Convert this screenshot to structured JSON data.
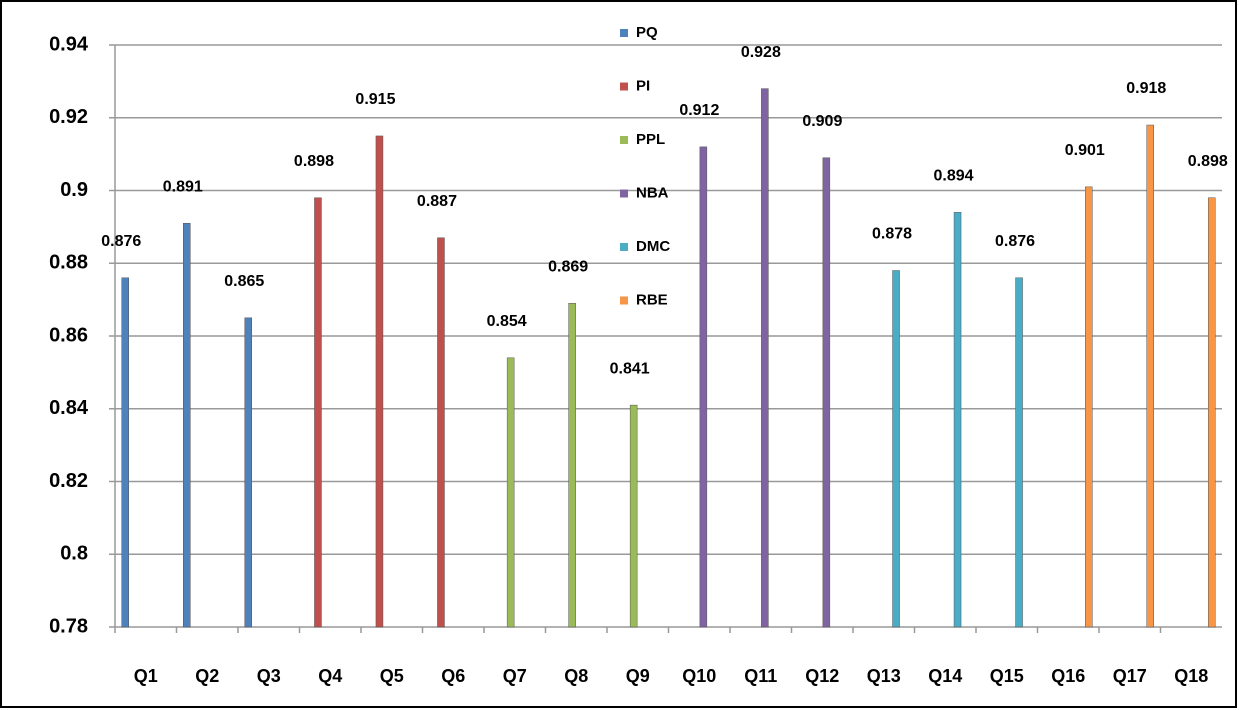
{
  "chart_data": {
    "type": "bar",
    "categories": [
      "Q1",
      "Q2",
      "Q3",
      "Q4",
      "Q5",
      "Q6",
      "Q7",
      "Q8",
      "Q9",
      "Q10",
      "Q11",
      "Q12",
      "Q13",
      "Q14",
      "Q15",
      "Q16",
      "Q17",
      "Q18"
    ],
    "series": [
      {
        "name": "PQ",
        "color": "#4f81bd",
        "values": [
          0.876,
          0.891,
          0.865,
          null,
          null,
          null,
          null,
          null,
          null,
          null,
          null,
          null,
          null,
          null,
          null,
          null,
          null,
          null
        ]
      },
      {
        "name": "PI",
        "color": "#c0504d",
        "values": [
          null,
          null,
          null,
          0.898,
          0.915,
          0.887,
          null,
          null,
          null,
          null,
          null,
          null,
          null,
          null,
          null,
          null,
          null,
          null
        ]
      },
      {
        "name": "PPL",
        "color": "#9bbb59",
        "values": [
          null,
          null,
          null,
          null,
          null,
          null,
          0.854,
          0.869,
          0.841,
          null,
          null,
          null,
          null,
          null,
          null,
          null,
          null,
          null
        ]
      },
      {
        "name": "NBA",
        "color": "#8064a2",
        "values": [
          null,
          null,
          null,
          null,
          null,
          null,
          null,
          null,
          null,
          0.912,
          0.928,
          0.909,
          null,
          null,
          null,
          null,
          null,
          null
        ]
      },
      {
        "name": "DMC",
        "color": "#4bacc6",
        "values": [
          null,
          null,
          null,
          null,
          null,
          null,
          null,
          null,
          null,
          null,
          null,
          null,
          0.878,
          0.894,
          0.876,
          null,
          null,
          null
        ]
      },
      {
        "name": "RBE",
        "color": "#f79646",
        "values": [
          null,
          null,
          null,
          null,
          null,
          null,
          null,
          null,
          null,
          null,
          null,
          null,
          null,
          null,
          null,
          0.901,
          0.918,
          0.898
        ]
      }
    ],
    "ylim": [
      0.78,
      0.94
    ],
    "yticks": [
      0.78,
      0.8,
      0.82,
      0.84,
      0.86,
      0.88,
      0.9,
      0.92,
      0.94
    ],
    "grid": true,
    "legend": "top"
  }
}
